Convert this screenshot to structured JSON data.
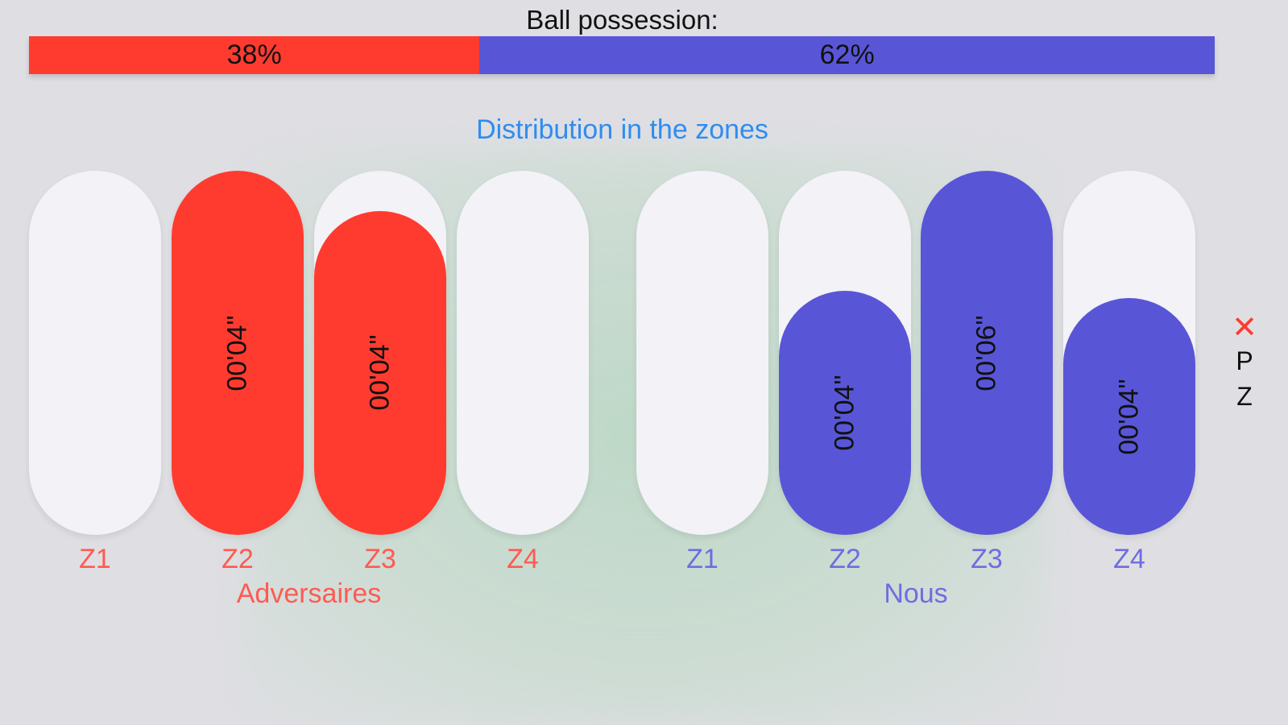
{
  "possession": {
    "title": "Ball possession:",
    "them_label": "38%",
    "us_label": "62%",
    "them_share": 0.38,
    "us_share": 0.62,
    "them_color": "#ff3b30",
    "us_color": "#5856d6"
  },
  "distribution": {
    "title": "Distribution in the zones",
    "title_color": "#2f8cf0",
    "them": {
      "name": "Adversaires",
      "color": "#ff3b30",
      "label_color": "#ff5a52",
      "zones": [
        {
          "label": "Z1",
          "time": "",
          "fill": 0
        },
        {
          "label": "Z2",
          "time": "00'04\"",
          "fill": 1.0
        },
        {
          "label": "Z3",
          "time": "00'04\"",
          "fill": 0.89
        },
        {
          "label": "Z4",
          "time": "",
          "fill": 0
        }
      ]
    },
    "us": {
      "name": "Nous",
      "color": "#5856d6",
      "label_color": "#6f6de0",
      "zones": [
        {
          "label": "Z1",
          "time": "",
          "fill": 0
        },
        {
          "label": "Z2",
          "time": "00'04\"",
          "fill": 0.67
        },
        {
          "label": "Z3",
          "time": "00'06\"",
          "fill": 1.0
        },
        {
          "label": "Z4",
          "time": "00'04\"",
          "fill": 0.65
        }
      ]
    }
  },
  "side_legend": {
    "close_icon": "close-icon",
    "letters": [
      "P",
      "Z"
    ]
  }
}
